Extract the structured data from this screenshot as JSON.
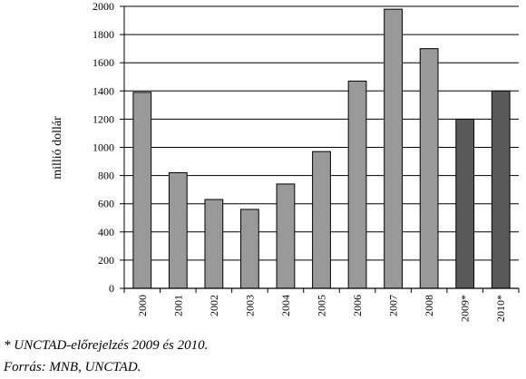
{
  "chart_data": {
    "type": "bar",
    "title": "",
    "xlabel": "",
    "ylabel": "millió dollár",
    "ylim": [
      0,
      2000
    ],
    "yticks": [
      0,
      200,
      400,
      600,
      800,
      1000,
      1200,
      1400,
      1600,
      1800,
      2000
    ],
    "grid": true,
    "categories": [
      "2000",
      "2001",
      "2002",
      "2003",
      "2004",
      "2005",
      "2006",
      "2007",
      "2008",
      "2009*",
      "2010*"
    ],
    "values": [
      1390,
      820,
      630,
      560,
      740,
      970,
      1470,
      1980,
      1700,
      1200,
      1400
    ],
    "colors": [
      "#999999",
      "#999999",
      "#999999",
      "#999999",
      "#999999",
      "#999999",
      "#999999",
      "#999999",
      "#999999",
      "#595959",
      "#595959"
    ]
  },
  "notes": {
    "forecast": "* UNCTAD-előrejelzés 2009 és 2010.",
    "source": "Forrás: MNB, UNCTAD."
  }
}
